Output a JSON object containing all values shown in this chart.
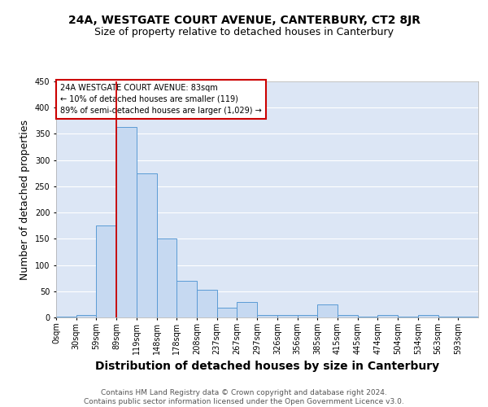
{
  "title": "24A, WESTGATE COURT AVENUE, CANTERBURY, CT2 8JR",
  "subtitle": "Size of property relative to detached houses in Canterbury",
  "xlabel": "Distribution of detached houses by size in Canterbury",
  "ylabel": "Number of detached properties",
  "bar_labels": [
    "0sqm",
    "30sqm",
    "59sqm",
    "89sqm",
    "119sqm",
    "148sqm",
    "178sqm",
    "208sqm",
    "237sqm",
    "267sqm",
    "297sqm",
    "326sqm",
    "356sqm",
    "385sqm",
    "415sqm",
    "445sqm",
    "474sqm",
    "504sqm",
    "534sqm",
    "563sqm",
    "593sqm"
  ],
  "bar_heights": [
    1,
    5,
    175,
    363,
    275,
    150,
    70,
    53,
    18,
    30,
    5,
    5,
    5,
    25,
    5,
    1,
    5,
    1,
    5,
    1,
    1
  ],
  "bar_color": "#c6d9f1",
  "bar_edge_color": "#5b9bd5",
  "background_color": "#dce6f5",
  "grid_color": "#ffffff",
  "vline_x_index": 3,
  "vline_color": "#cc0000",
  "annotation_text": "24A WESTGATE COURT AVENUE: 83sqm\n← 10% of detached houses are smaller (119)\n89% of semi-detached houses are larger (1,029) →",
  "annotation_box_edge": "#cc0000",
  "ylim": [
    0,
    430
  ],
  "yticks": [
    0,
    50,
    100,
    150,
    200,
    250,
    300,
    350,
    400,
    450
  ],
  "footer": "Contains HM Land Registry data © Crown copyright and database right 2024.\nContains public sector information licensed under the Open Government Licence v3.0.",
  "title_fontsize": 10,
  "subtitle_fontsize": 9,
  "axis_label_fontsize": 9,
  "tick_fontsize": 7,
  "footer_fontsize": 6.5
}
